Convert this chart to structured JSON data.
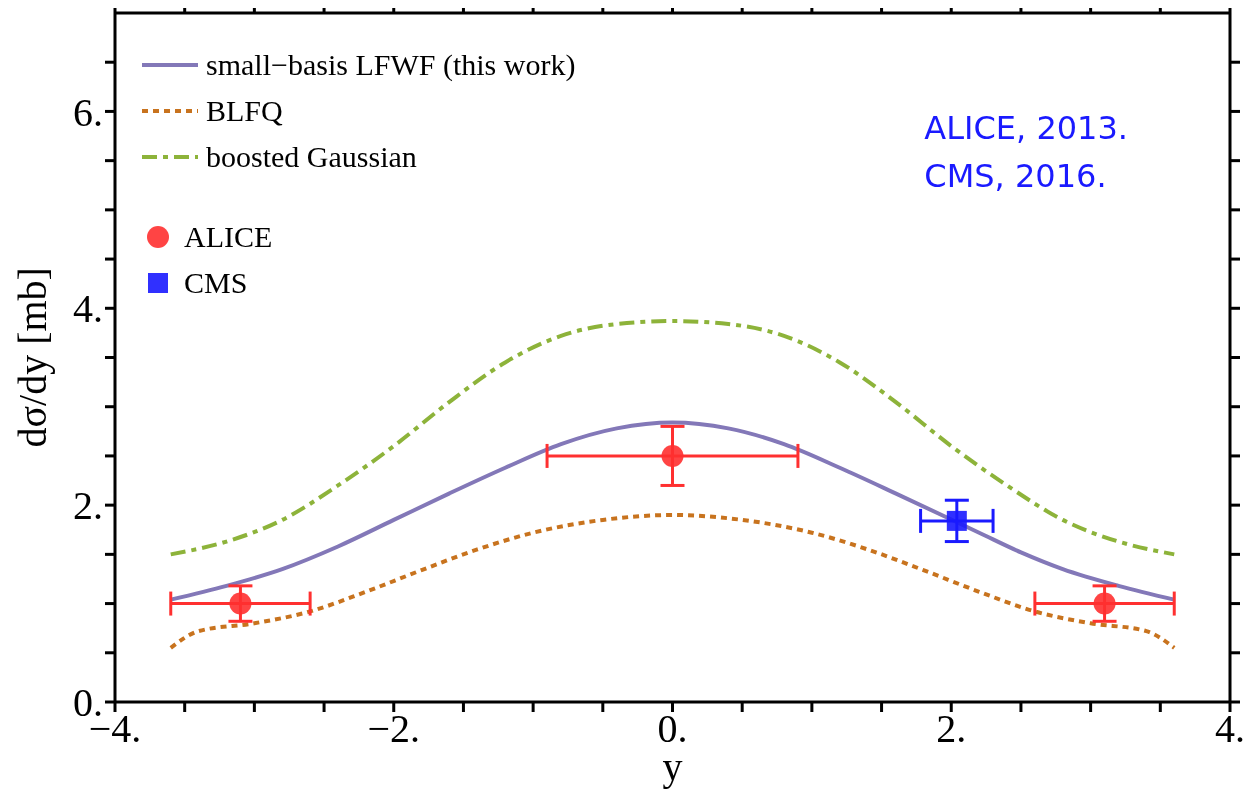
{
  "chart_data": {
    "type": "line",
    "xlabel": "y",
    "ylabel": "dσ/dy  [mb]",
    "xlim": [
      -4,
      4
    ],
    "ylim": [
      0,
      7
    ],
    "xticks": [
      {
        "value": -4,
        "label": "−4."
      },
      {
        "value": -3.5,
        "label": null
      },
      {
        "value": -3,
        "label": null
      },
      {
        "value": -2.5,
        "label": null
      },
      {
        "value": -2,
        "label": "−2."
      },
      {
        "value": -1.5,
        "label": null
      },
      {
        "value": -1,
        "label": null
      },
      {
        "value": -0.5,
        "label": null
      },
      {
        "value": 0,
        "label": "0."
      },
      {
        "value": 0.5,
        "label": null
      },
      {
        "value": 1,
        "label": null
      },
      {
        "value": 1.5,
        "label": null
      },
      {
        "value": 2,
        "label": "2."
      },
      {
        "value": 2.5,
        "label": null
      },
      {
        "value": 3,
        "label": null
      },
      {
        "value": 3.5,
        "label": null
      },
      {
        "value": 4,
        "label": "4."
      }
    ],
    "yticks": [
      {
        "value": 0,
        "label": "0."
      },
      {
        "value": 0.5,
        "label": null
      },
      {
        "value": 1,
        "label": null
      },
      {
        "value": 1.5,
        "label": null
      },
      {
        "value": 2,
        "label": "2."
      },
      {
        "value": 2.5,
        "label": null
      },
      {
        "value": 3,
        "label": null
      },
      {
        "value": 3.5,
        "label": null
      },
      {
        "value": 4,
        "label": "4."
      },
      {
        "value": 4.5,
        "label": null
      },
      {
        "value": 5,
        "label": null
      },
      {
        "value": 5.5,
        "label": null
      },
      {
        "value": 6,
        "label": "6."
      },
      {
        "value": 6.5,
        "label": null
      }
    ],
    "grid": false,
    "legend": "top left",
    "annotations": [
      "ALICE, 2013.",
      "CMS, 2016."
    ],
    "series": [
      {
        "name": "small−basis LFWF (this work)",
        "color": "#8378b8",
        "line_style": "solid",
        "marker": "none",
        "x": [
          -3.6,
          -3.2,
          -2.8,
          -2.4,
          -2,
          -1.6,
          -1.2,
          -0.8,
          -0.4,
          0,
          0.4,
          0.8,
          1.2,
          1.6,
          2.2,
          2.5,
          2.8,
          3.2,
          3.6
        ],
        "values": [
          1.04,
          1.18,
          1.35,
          1.58,
          1.85,
          2.12,
          2.38,
          2.62,
          2.78,
          2.84,
          2.78,
          2.62,
          2.38,
          2.12,
          1.72,
          1.52,
          1.35,
          1.18,
          1.04
        ]
      },
      {
        "name": "BLFQ",
        "color": "#c8731e",
        "line_style": "dotted",
        "marker": "none",
        "x": [
          -3.6,
          -3.4,
          -3,
          -2.6,
          -2.2,
          -1.8,
          -1.4,
          -1,
          -0.5,
          0,
          0.5,
          1,
          1.4,
          1.8,
          2.2,
          2.6,
          3,
          3.4,
          3.6
        ],
        "values": [
          0.55,
          0.72,
          0.8,
          0.92,
          1.12,
          1.34,
          1.55,
          1.72,
          1.85,
          1.9,
          1.85,
          1.72,
          1.55,
          1.34,
          1.12,
          0.92,
          0.8,
          0.72,
          0.55
        ]
      },
      {
        "name": "boosted Gaussian",
        "color": "#8db33a",
        "line_style": "dashed",
        "marker": "none",
        "x": [
          -3.6,
          -3.2,
          -2.8,
          -2.4,
          -2,
          -1.6,
          -1.2,
          -0.8,
          -0.4,
          0,
          0.4,
          0.8,
          1.2,
          1.6,
          2,
          2.4,
          2.8,
          3.2,
          3.6
        ],
        "values": [
          1.5,
          1.63,
          1.85,
          2.2,
          2.6,
          3.05,
          3.45,
          3.72,
          3.84,
          3.87,
          3.84,
          3.72,
          3.45,
          3.05,
          2.6,
          2.2,
          1.85,
          1.63,
          1.5
        ]
      },
      {
        "name": "ALICE",
        "type": "scatter",
        "color": "#ff3030",
        "marker": "circle",
        "x": [
          -3.1,
          0,
          3.1
        ],
        "values": [
          1.0,
          2.5,
          1.0
        ],
        "errors": [
          0.18,
          0.3,
          0.18
        ],
        "xerrors": [
          0.5,
          0.9,
          0.5
        ]
      },
      {
        "name": "CMS",
        "type": "scatter",
        "color": "#1a1aff",
        "marker": "square",
        "x": [
          2.04
        ],
        "values": [
          1.84
        ],
        "errors": [
          0.21
        ],
        "xerrors": [
          0.26
        ]
      }
    ]
  }
}
